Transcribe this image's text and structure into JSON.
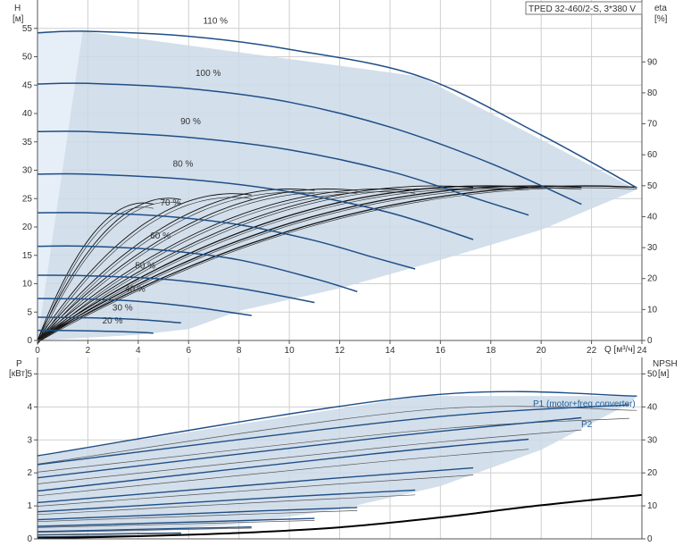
{
  "chart_data": [
    {
      "type": "line",
      "title": "TPED 32-460/2-S, 3*380 V",
      "xlabel": "Q [м³/ч]",
      "ylabel": "H\n[м]",
      "y2label": "eta\n[%]",
      "xlim": [
        0,
        24
      ],
      "ylim": [
        0,
        60
      ],
      "y2lim": [
        0,
        110
      ],
      "xticks": [
        0,
        2,
        4,
        6,
        8,
        10,
        12,
        14,
        16,
        18,
        20,
        22,
        24
      ],
      "yticks": [
        0,
        5,
        10,
        15,
        20,
        25,
        30,
        35,
        40,
        45,
        50,
        55
      ],
      "y2ticks": [
        0,
        10,
        20,
        30,
        40,
        50,
        60,
        70,
        80,
        90
      ],
      "grid": true,
      "operating_region": [
        [
          0,
          54.5
        ],
        [
          1.8,
          54.5
        ],
        [
          15.2,
          46.5
        ],
        [
          23.8,
          26.6
        ],
        [
          20,
          19.5
        ],
        [
          16,
          14.2
        ],
        [
          12,
          9.2
        ],
        [
          8,
          5.2
        ],
        [
          6,
          2.0
        ],
        [
          4,
          1.0
        ],
        [
          0,
          0
        ]
      ],
      "series": [
        {
          "label": "110 %",
          "x": [
            0,
            1.8,
            6,
            10,
            15.2,
            20,
            23.8
          ],
          "y": [
            54.2,
            54.5,
            53.6,
            51.3,
            46.5,
            36.2,
            26.9
          ]
        },
        {
          "label": "100 %",
          "x": [
            0,
            2,
            6,
            10,
            14,
            18,
            21.6
          ],
          "y": [
            45.2,
            45.3,
            44.4,
            42.0,
            37.6,
            31.2,
            24.0
          ]
        },
        {
          "label": "90 %",
          "x": [
            0,
            2,
            6,
            10,
            14,
            17,
            19.5
          ],
          "y": [
            36.8,
            36.8,
            35.8,
            33.6,
            29.8,
            25.6,
            22.1
          ]
        },
        {
          "label": "80 %",
          "x": [
            0,
            2,
            6,
            10,
            14,
            17.3
          ],
          "y": [
            29.3,
            29.3,
            28.4,
            26.2,
            22.5,
            17.8
          ]
        },
        {
          "label": "70 %",
          "x": [
            0,
            2,
            5,
            8,
            11,
            13.3,
            15.0
          ],
          "y": [
            22.5,
            22.5,
            21.9,
            20.4,
            17.6,
            14.7,
            12.6
          ]
        },
        {
          "label": "60 %",
          "x": [
            0,
            2,
            5,
            8,
            11,
            12.7
          ],
          "y": [
            16.6,
            16.6,
            15.9,
            14.2,
            10.9,
            8.6
          ]
        },
        {
          "label": "50 %",
          "x": [
            0,
            2,
            5,
            8,
            11.0
          ],
          "y": [
            11.5,
            11.4,
            10.8,
            9.2,
            6.7
          ]
        },
        {
          "label": "40 %",
          "x": [
            0,
            2,
            4,
            6,
            8.5
          ],
          "y": [
            7.4,
            7.3,
            6.9,
            6.0,
            4.4
          ]
        },
        {
          "label": "30 %",
          "x": [
            0,
            2,
            4,
            5.7
          ],
          "y": [
            4.1,
            4.0,
            3.7,
            3.1
          ]
        },
        {
          "label": "20 %",
          "x": [
            0,
            2,
            3.7,
            4.6
          ],
          "y": [
            1.8,
            1.7,
            1.5,
            1.3
          ]
        }
      ]
    },
    {
      "type": "line",
      "xlabel": "Q [м³/ч]",
      "ylabel": "P\n[кВт]",
      "y2label": "NPSH\n[м]",
      "xlim": [
        0,
        24
      ],
      "ylim": [
        0,
        5.5
      ],
      "y2lim": [
        0,
        55
      ],
      "yticks": [
        0,
        1,
        2,
        3,
        4,
        5
      ],
      "y2ticks": [
        0,
        10,
        20,
        30,
        40,
        50
      ],
      "grid": true,
      "series_labels": [
        "P1 (motor+freq.converter)",
        "P2"
      ],
      "operating_region": [
        [
          0,
          2.5
        ],
        [
          1.5,
          2.7
        ],
        [
          15.2,
          4.33
        ],
        [
          23.8,
          4.33
        ],
        [
          23.5,
          4.1
        ],
        [
          20,
          2.7
        ],
        [
          16,
          1.6
        ],
        [
          12,
          0.9
        ],
        [
          8,
          0.45
        ],
        [
          4,
          0.2
        ],
        [
          0,
          0.15
        ]
      ],
      "p_curves": [
        {
          "x": [
            0,
            15.2,
            23.8
          ],
          "y": [
            2.52,
            4.33,
            4.33
          ]
        },
        {
          "x": [
            0,
            15.2,
            23.5
          ],
          "y": [
            2.25,
            3.65,
            4.06
          ]
        },
        {
          "x": [
            0,
            14,
            21.6
          ],
          "y": [
            1.85,
            3.1,
            3.67
          ]
        },
        {
          "x": [
            0,
            13,
            19.5
          ],
          "y": [
            1.45,
            2.55,
            3.02
          ]
        },
        {
          "x": [
            0,
            12,
            17.3
          ],
          "y": [
            1.1,
            1.85,
            2.15
          ]
        },
        {
          "x": [
            0,
            10,
            15.0
          ],
          "y": [
            0.82,
            1.28,
            1.48
          ]
        },
        {
          "x": [
            0,
            9,
            12.7
          ],
          "y": [
            0.58,
            0.85,
            0.95
          ]
        },
        {
          "x": [
            0,
            8,
            11.0
          ],
          "y": [
            0.38,
            0.55,
            0.62
          ]
        },
        {
          "x": [
            0,
            6,
            8.5
          ],
          "y": [
            0.22,
            0.32,
            0.36
          ]
        },
        {
          "x": [
            0,
            4,
            5.7
          ],
          "y": [
            0.12,
            0.16,
            0.18
          ]
        },
        {
          "x": [
            0,
            3,
            4.6
          ],
          "y": [
            0.06,
            0.08,
            0.09
          ]
        }
      ],
      "npsh": {
        "x": [
          0,
          4,
          8,
          12,
          16,
          20,
          24
        ],
        "y": [
          0.2,
          0.8,
          1.8,
          3.5,
          6.5,
          10.2,
          13.3
        ]
      }
    }
  ]
}
